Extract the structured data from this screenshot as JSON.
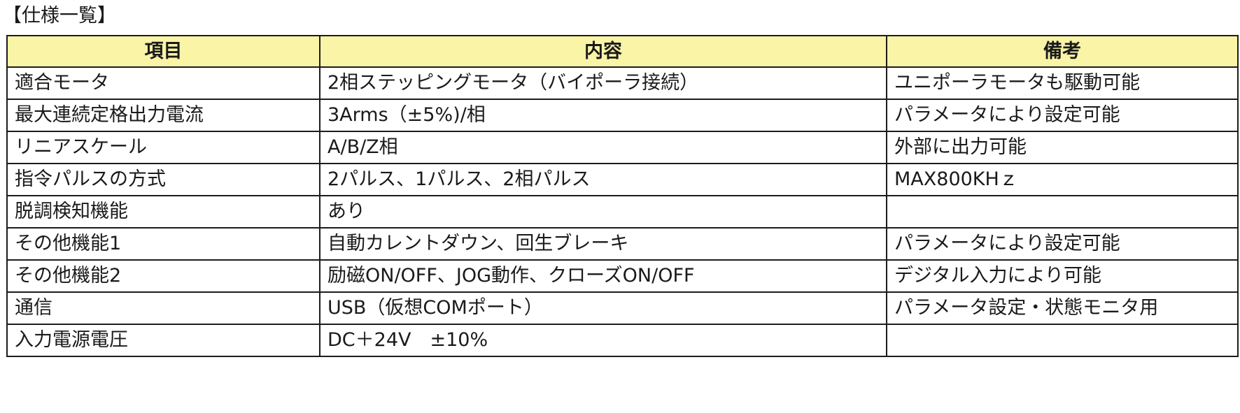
{
  "title": "【仕様一覧】",
  "table": {
    "headers": [
      "項目",
      "内容",
      "備考"
    ],
    "rows": [
      [
        "適合モータ",
        "2相ステッピングモータ（バイポーラ接続）",
        "ユニポーラモータも駆動可能"
      ],
      [
        "最大連続定格出力電流",
        "3Arms（±5%)/相",
        "パラメータにより設定可能"
      ],
      [
        "リニアスケール",
        "A/B/Z相",
        "外部に出力可能"
      ],
      [
        "指令パルスの方式",
        "2パルス、1パルス、2相パルス",
        "MAX800KHｚ"
      ],
      [
        "脱調検知機能",
        "あり",
        ""
      ],
      [
        "その他機能1",
        "自動カレントダウン、回生ブレーキ",
        "パラメータにより設定可能"
      ],
      [
        "その他機能2",
        "励磁ON/OFF、JOG動作、クローズON/OFF",
        "デジタル入力により可能"
      ],
      [
        "通信",
        "USB（仮想COMポート）",
        "パラメータ設定・状態モニタ用"
      ],
      [
        "入力電源電圧",
        "DC＋24V　±10%",
        ""
      ]
    ]
  }
}
